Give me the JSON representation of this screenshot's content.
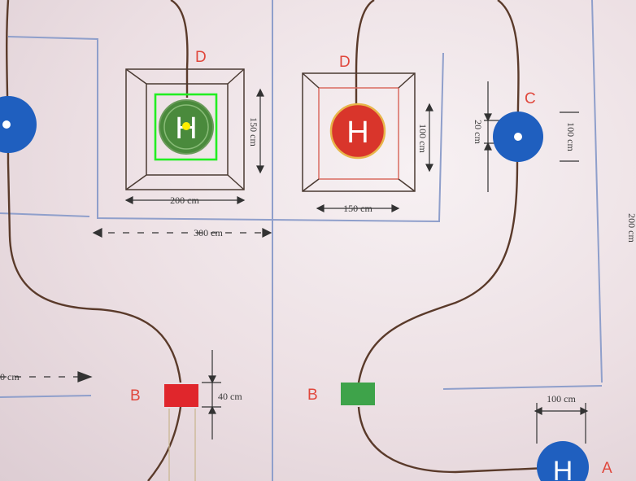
{
  "labels": {
    "helipad_left_tag": "D",
    "helipad_right_tag": "D",
    "target_right_tag": "C",
    "box_left_tag": "B",
    "box_right_tag": "B",
    "target_bottom_tag": "A"
  },
  "dimensions": {
    "left_square_width": "200 cm",
    "left_square_height": "150 cm",
    "right_square_width": "150 cm",
    "right_square_height": "100 cm",
    "spacing": "300 cm",
    "target_c_offset": "20 cm",
    "target_c_size": "100 cm",
    "box_height": "40 cm",
    "target_a_size": "100 cm",
    "right_edge": "200 cm",
    "left_edge_partial": "0 cm"
  },
  "helipad_letter": "H",
  "colors": {
    "green_pad": "#4a8a3c",
    "red_pad": "#d9352b",
    "blue_target": "#1f5fbf",
    "red_box": "#e0262c",
    "green_box": "#3ea34a",
    "detection_box": "#22ee22",
    "detection_point": "#ffee00"
  }
}
